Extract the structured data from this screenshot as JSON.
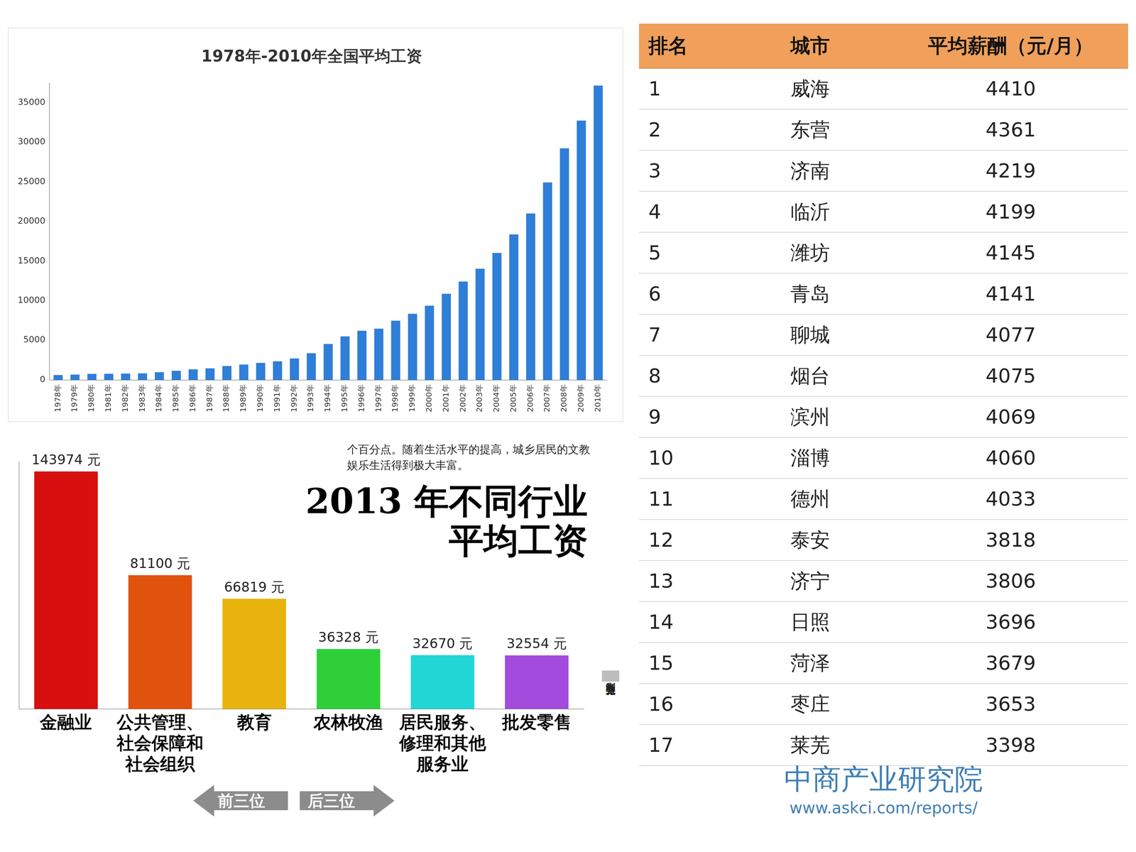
{
  "chart_data": [
    {
      "type": "bar",
      "title": "1978年-2010年全国平均工资",
      "categories": [
        "1978年",
        "1979年",
        "1980年",
        "1981年",
        "1982年",
        "1983年",
        "1984年",
        "1985年",
        "1986年",
        "1987年",
        "1988年",
        "1989年",
        "1990年",
        "1991年",
        "1992年",
        "1993年",
        "1994年",
        "1995年",
        "1996年",
        "1997年",
        "1998年",
        "1999年",
        "2000年",
        "2001年",
        "2002年",
        "2003年",
        "2004年",
        "2005年",
        "2006年",
        "2007年",
        "2008年",
        "2009年",
        "2010年"
      ],
      "values": [
        615,
        668,
        762,
        772,
        798,
        826,
        974,
        1148,
        1329,
        1459,
        1747,
        1935,
        2140,
        2340,
        2711,
        3371,
        4538,
        5500,
        6210,
        6470,
        7479,
        8346,
        9371,
        10870,
        12422,
        14040,
        16024,
        18364,
        21001,
        24932,
        29229,
        32736,
        37147
      ],
      "color": "#2f7ed8",
      "ylim": [
        0,
        37500
      ],
      "yticks": [
        0,
        5000,
        10000,
        15000,
        20000,
        25000,
        30000,
        35000
      ],
      "grid": false
    },
    {
      "type": "bar",
      "title": "2013 年不同行业平均工资",
      "note": "个百分点。随着生活水平的提高，城乡居民的文教娱乐生活得到极大丰富。",
      "groups": [
        "前三位",
        "后三位"
      ],
      "credit": "制表 张圣龙",
      "categories": [
        "金融业",
        "公共管理、社会保障和社会组织",
        "教育",
        "农林牧渔",
        "居民服务、修理和其他服务业",
        "批发零售"
      ],
      "values": [
        143974,
        81100,
        66819,
        36328,
        32670,
        32554
      ],
      "value_labels": [
        "143974 元",
        "81100 元",
        "66819 元",
        "36328 元",
        "32670 元",
        "32554 元"
      ],
      "colors": [
        "#d80f0f",
        "#e0520e",
        "#e8b30c",
        "#2fcf3a",
        "#22d6d6",
        "#a34bdc"
      ],
      "ylim": [
        0,
        150000
      ],
      "data_labels": true,
      "tick_labels": "x",
      "grid": false
    }
  ],
  "table": {
    "header": [
      "排名",
      "城市",
      "平均薪酬（元/月）"
    ],
    "rows": [
      [
        "1",
        "威海",
        "4410"
      ],
      [
        "2",
        "东营",
        "4361"
      ],
      [
        "3",
        "济南",
        "4219"
      ],
      [
        "4",
        "临沂",
        "4199"
      ],
      [
        "5",
        "潍坊",
        "4145"
      ],
      [
        "6",
        "青岛",
        "4141"
      ],
      [
        "7",
        "聊城",
        "4077"
      ],
      [
        "8",
        "烟台",
        "4075"
      ],
      [
        "9",
        "滨州",
        "4069"
      ],
      [
        "10",
        "淄博",
        "4060"
      ],
      [
        "11",
        "德州",
        "4033"
      ],
      [
        "12",
        "泰安",
        "3818"
      ],
      [
        "13",
        "济宁",
        "3806"
      ],
      [
        "14",
        "日照",
        "3696"
      ],
      [
        "15",
        "菏泽",
        "3679"
      ],
      [
        "16",
        "枣庄",
        "3653"
      ],
      [
        "17",
        "莱芜",
        "3398"
      ]
    ],
    "watermark": [
      "中商产业研究院",
      "www.askci.com/reports/"
    ]
  }
}
